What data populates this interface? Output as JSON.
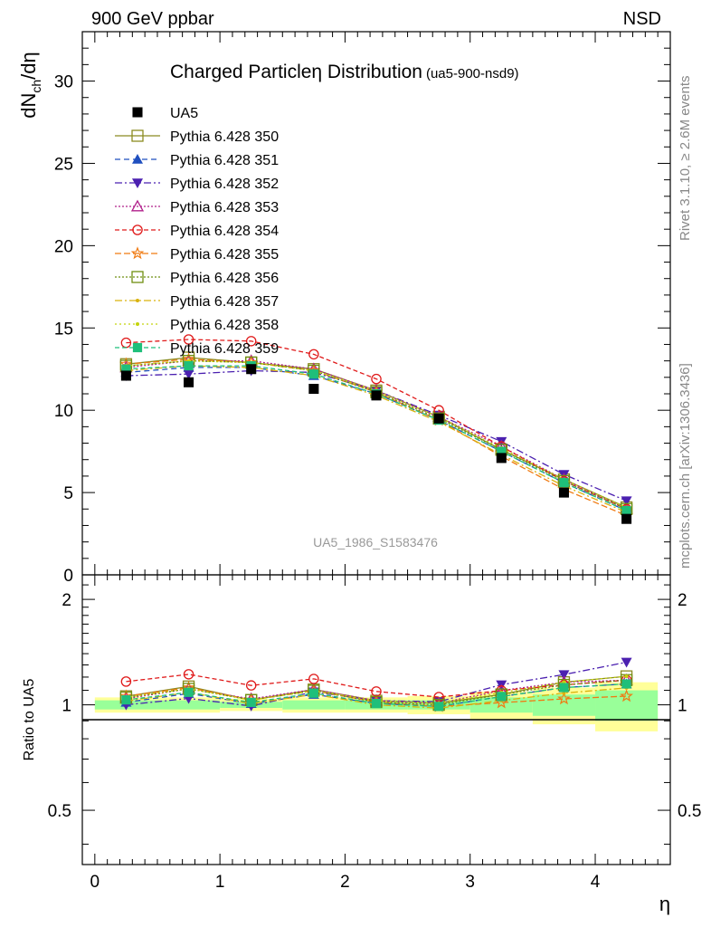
{
  "chart_data": {
    "type": "line",
    "header_left": "900 GeV ppbar",
    "header_right": "NSD",
    "title": "Charged Particleη Distribution",
    "title_suffix": "(ua5-900-nsd9)",
    "ylabel": "dN",
    "ylabel_sub": "ch",
    "ylabel_suffix": "/dη",
    "xlabel": "η",
    "ratio_ylabel": "Ratio to UA5",
    "analysis_id": "UA5_1986_S1583476",
    "side_text_top": "Rivet 3.1.10, ≥ 2.6M events",
    "side_text_bottom": "mcplots.cern.ch [arXiv:1306.3436]",
    "xlim": [
      -0.1,
      4.6
    ],
    "ylim": [
      0,
      33
    ],
    "ratio_ylim": [
      0.35,
      2.35
    ],
    "x_ticks": [
      0,
      1,
      2,
      3,
      4
    ],
    "y_ticks": [
      0,
      5,
      10,
      15,
      20,
      25,
      30
    ],
    "ratio_ticks": [
      0.5,
      1,
      2
    ],
    "bins": [
      [
        0.0,
        0.5
      ],
      [
        0.5,
        1.0
      ],
      [
        1.0,
        1.5
      ],
      [
        1.5,
        2.0
      ],
      [
        2.0,
        2.5
      ],
      [
        2.5,
        3.0
      ],
      [
        3.0,
        3.5
      ],
      [
        3.5,
        4.0
      ],
      [
        4.0,
        4.5
      ]
    ],
    "x": [
      0.25,
      0.75,
      1.25,
      1.75,
      2.25,
      2.75,
      3.25,
      3.75,
      4.25
    ],
    "data": {
      "name": "UA5",
      "values": [
        12.1,
        11.7,
        12.5,
        11.3,
        10.9,
        9.5,
        7.1,
        5.0,
        3.4
      ],
      "band_inner": [
        0.03,
        0.03,
        0.02,
        0.03,
        0.03,
        0.03,
        0.05,
        0.07,
        0.1
      ],
      "band_outer": [
        0.05,
        0.05,
        0.04,
        0.05,
        0.05,
        0.06,
        0.09,
        0.12,
        0.16
      ]
    },
    "series": [
      {
        "name": "Pythia 6.428 350",
        "color": "#8b8b20",
        "marker": "square-open",
        "dash": "",
        "values": [
          12.8,
          13.2,
          12.9,
          12.5,
          11.2,
          9.6,
          7.6,
          5.8,
          4.1
        ]
      },
      {
        "name": "Pythia 6.428 351",
        "color": "#1f4fbf",
        "marker": "triangle-up",
        "dash": "6,4",
        "values": [
          12.3,
          12.6,
          12.6,
          12.1,
          11.0,
          9.4,
          7.5,
          5.6,
          3.9
        ]
      },
      {
        "name": "Pythia 6.428 352",
        "color": "#4b20b0",
        "marker": "triangle-down",
        "dash": "8,3,2,3",
        "values": [
          12.1,
          12.2,
          12.4,
          12.3,
          11.2,
          9.7,
          8.1,
          6.1,
          4.5
        ]
      },
      {
        "name": "Pythia 6.428 353",
        "color": "#b0208b",
        "marker": "triangle-open",
        "dash": "2,2",
        "values": [
          12.6,
          13.0,
          13.0,
          12.5,
          11.2,
          9.6,
          7.8,
          5.8,
          4.0
        ]
      },
      {
        "name": "Pythia 6.428 354",
        "color": "#e01a1a",
        "marker": "circle-open",
        "dash": "5,3",
        "values": [
          14.1,
          14.3,
          14.2,
          13.4,
          11.9,
          10.0,
          7.8,
          5.7,
          4.0
        ]
      },
      {
        "name": "Pythia 6.428 355",
        "color": "#f07a12",
        "marker": "star-open",
        "dash": "7,3",
        "values": [
          12.8,
          13.1,
          12.9,
          12.4,
          11.1,
          9.4,
          7.2,
          5.2,
          3.6
        ]
      },
      {
        "name": "Pythia 6.428 356",
        "color": "#6f8f10",
        "marker": "square-open",
        "dash": "2,2",
        "values": [
          12.7,
          13.0,
          12.9,
          12.4,
          11.1,
          9.5,
          7.6,
          5.7,
          4.0
        ]
      },
      {
        "name": "Pythia 6.428 357",
        "color": "#d9b20c",
        "marker": "small-dot",
        "dash": "8,3,2,3",
        "values": [
          12.4,
          12.7,
          12.6,
          12.1,
          10.9,
          9.3,
          7.3,
          5.4,
          3.8
        ]
      },
      {
        "name": "Pythia 6.428 358",
        "color": "#c4d40c",
        "marker": "small-dot",
        "dash": "2,3",
        "values": [
          12.7,
          13.0,
          12.9,
          12.4,
          11.2,
          9.6,
          7.7,
          5.8,
          4.1
        ]
      },
      {
        "name": "Pythia 6.428 359",
        "color": "#1fbf7a",
        "marker": "square-filled",
        "dash": "5,3",
        "values": [
          12.5,
          12.7,
          12.7,
          12.2,
          11.0,
          9.4,
          7.5,
          5.6,
          3.9
        ]
      }
    ]
  }
}
